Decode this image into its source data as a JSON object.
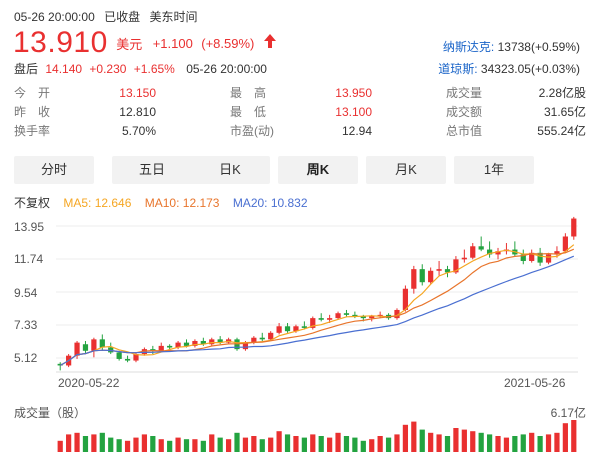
{
  "header": {
    "datetime": "05-26 20:00:00",
    "status": "已收盘",
    "timezone": "美东时间"
  },
  "price": {
    "last": "13.910",
    "currency": "美元",
    "change": "+1.100",
    "change_pct": "(+8.59%)",
    "color": "#e93030"
  },
  "after_hours": {
    "label": "盘后",
    "price": "14.140",
    "change": "+0.230",
    "change_pct": "+1.65%",
    "time": "05-26 20:00:00"
  },
  "indices": [
    {
      "name": "纳斯达克:",
      "value": "13738(+0.59%)"
    },
    {
      "name": "道琼斯:",
      "value": "34323.05(+0.03%)"
    }
  ],
  "stats": {
    "open": {
      "label": "今　开",
      "value": "13.150"
    },
    "high": {
      "label": "最　高",
      "value": "13.950"
    },
    "volume": {
      "label": "成交量",
      "value": "2.28亿股"
    },
    "prev_close": {
      "label": "昨　收",
      "value": "12.810"
    },
    "low": {
      "label": "最　低",
      "value": "13.100"
    },
    "amount": {
      "label": "成交额",
      "value": "31.65亿"
    },
    "turnover": {
      "label": "换手率",
      "value": "5.70%"
    },
    "pe": {
      "label": "市盈(动)",
      "value": "12.94"
    },
    "market_cap": {
      "label": "总市值",
      "value": "555.24亿"
    }
  },
  "tabs": [
    "分时",
    "五日",
    "日K",
    "周K",
    "月K",
    "1年"
  ],
  "active_tab": "周K",
  "adjust": "不复权",
  "ma": {
    "ma5": {
      "label": "MA5: 12.646",
      "color": "#f5a623"
    },
    "ma10": {
      "label": "MA10: 12.173",
      "color": "#e8752c"
    },
    "ma20": {
      "label": "MA20: 10.832",
      "color": "#4a6fd1"
    }
  },
  "chart_data": {
    "type": "candlestick",
    "y_ticks": [
      "13.95",
      "11.74",
      "9.54",
      "7.33",
      "5.12"
    ],
    "ylim": [
      4.5,
      14.3
    ],
    "x_start": "2020-05-22",
    "x_end": "2021-05-26",
    "volume_title": "成交量（股）",
    "volume_max": "6.17亿",
    "candles": [
      [
        5.0,
        5.1,
        4.6,
        4.9
      ],
      [
        4.9,
        5.6,
        4.8,
        5.5
      ],
      [
        5.5,
        6.4,
        5.3,
        6.3
      ],
      [
        6.2,
        6.4,
        5.6,
        5.8
      ],
      [
        5.8,
        6.6,
        5.4,
        6.5
      ],
      [
        6.5,
        6.8,
        5.8,
        6.0
      ],
      [
        6.0,
        6.3,
        5.6,
        5.7
      ],
      [
        5.7,
        5.8,
        5.2,
        5.3
      ],
      [
        5.3,
        5.5,
        5.1,
        5.2
      ],
      [
        5.2,
        5.7,
        5.1,
        5.6
      ],
      [
        5.6,
        6.0,
        5.5,
        5.9
      ],
      [
        5.9,
        6.1,
        5.6,
        5.8
      ],
      [
        5.8,
        6.3,
        5.7,
        6.1
      ],
      [
        6.1,
        6.2,
        5.9,
        6.0
      ],
      [
        6.0,
        6.4,
        5.9,
        6.3
      ],
      [
        6.3,
        6.5,
        6.0,
        6.1
      ],
      [
        6.1,
        6.5,
        6.0,
        6.4
      ],
      [
        6.4,
        6.6,
        6.1,
        6.2
      ],
      [
        6.2,
        6.6,
        6.1,
        6.5
      ],
      [
        6.5,
        6.7,
        6.2,
        6.3
      ],
      [
        6.3,
        6.6,
        6.2,
        6.5
      ],
      [
        6.5,
        6.6,
        5.8,
        5.9
      ],
      [
        5.9,
        6.4,
        5.8,
        6.3
      ],
      [
        6.3,
        6.7,
        6.2,
        6.6
      ],
      [
        6.6,
        6.9,
        6.4,
        6.5
      ],
      [
        6.5,
        7.0,
        6.4,
        6.9
      ],
      [
        6.9,
        7.5,
        6.8,
        7.3
      ],
      [
        7.3,
        7.5,
        6.9,
        7.0
      ],
      [
        7.0,
        7.4,
        6.9,
        7.3
      ],
      [
        7.3,
        7.6,
        7.1,
        7.2
      ],
      [
        7.2,
        7.9,
        7.1,
        7.8
      ],
      [
        7.8,
        8.1,
        7.6,
        7.7
      ],
      [
        7.7,
        8.0,
        7.5,
        7.8
      ],
      [
        7.8,
        8.2,
        7.7,
        8.1
      ],
      [
        8.1,
        8.3,
        7.9,
        8.0
      ],
      [
        8.0,
        8.2,
        7.8,
        7.9
      ],
      [
        7.9,
        8.0,
        7.6,
        7.8
      ],
      [
        7.8,
        8.0,
        7.6,
        7.9
      ],
      [
        7.9,
        8.2,
        7.8,
        8.0
      ],
      [
        8.0,
        8.1,
        7.7,
        7.8
      ],
      [
        7.8,
        8.4,
        7.7,
        8.3
      ],
      [
        8.3,
        9.8,
        8.2,
        9.6
      ],
      [
        9.6,
        11.0,
        9.3,
        10.8
      ],
      [
        10.8,
        11.1,
        9.8,
        10.0
      ],
      [
        10.0,
        10.9,
        9.9,
        10.7
      ],
      [
        10.7,
        11.3,
        10.4,
        10.8
      ],
      [
        10.8,
        11.0,
        10.3,
        10.6
      ],
      [
        10.6,
        11.6,
        10.5,
        11.4
      ],
      [
        11.4,
        12.0,
        11.2,
        11.5
      ],
      [
        11.5,
        12.4,
        11.4,
        12.2
      ],
      [
        12.2,
        12.8,
        11.9,
        12.0
      ],
      [
        12.0,
        12.5,
        11.5,
        11.7
      ],
      [
        11.7,
        12.1,
        11.4,
        11.9
      ],
      [
        11.9,
        12.4,
        11.7,
        12.0
      ],
      [
        12.0,
        12.5,
        11.6,
        11.7
      ],
      [
        11.7,
        12.0,
        11.1,
        11.3
      ],
      [
        11.3,
        12.0,
        11.2,
        11.8
      ],
      [
        11.8,
        12.1,
        11.0,
        11.2
      ],
      [
        11.2,
        11.8,
        11.1,
        11.7
      ],
      [
        11.7,
        12.2,
        11.5,
        11.9
      ],
      [
        11.9,
        13.0,
        11.8,
        12.8
      ],
      [
        12.8,
        14.0,
        12.6,
        13.9
      ]
    ],
    "volumes": [
      [
        0.35,
        1
      ],
      [
        0.55,
        1
      ],
      [
        0.6,
        1
      ],
      [
        0.5,
        0
      ],
      [
        0.55,
        1
      ],
      [
        0.6,
        0
      ],
      [
        0.45,
        0
      ],
      [
        0.4,
        0
      ],
      [
        0.35,
        1
      ],
      [
        0.45,
        1
      ],
      [
        0.55,
        1
      ],
      [
        0.5,
        0
      ],
      [
        0.4,
        1
      ],
      [
        0.35,
        0
      ],
      [
        0.45,
        1
      ],
      [
        0.4,
        0
      ],
      [
        0.4,
        1
      ],
      [
        0.35,
        0
      ],
      [
        0.55,
        1
      ],
      [
        0.45,
        0
      ],
      [
        0.4,
        1
      ],
      [
        0.6,
        0
      ],
      [
        0.45,
        1
      ],
      [
        0.5,
        1
      ],
      [
        0.4,
        0
      ],
      [
        0.45,
        1
      ],
      [
        0.65,
        1
      ],
      [
        0.55,
        0
      ],
      [
        0.5,
        1
      ],
      [
        0.45,
        0
      ],
      [
        0.55,
        1
      ],
      [
        0.5,
        0
      ],
      [
        0.45,
        1
      ],
      [
        0.6,
        1
      ],
      [
        0.5,
        0
      ],
      [
        0.45,
        0
      ],
      [
        0.35,
        0
      ],
      [
        0.4,
        1
      ],
      [
        0.5,
        1
      ],
      [
        0.45,
        0
      ],
      [
        0.55,
        1
      ],
      [
        0.85,
        1
      ],
      [
        0.95,
        1
      ],
      [
        0.7,
        0
      ],
      [
        0.6,
        1
      ],
      [
        0.55,
        1
      ],
      [
        0.5,
        0
      ],
      [
        0.75,
        1
      ],
      [
        0.7,
        1
      ],
      [
        0.65,
        1
      ],
      [
        0.6,
        0
      ],
      [
        0.55,
        0
      ],
      [
        0.5,
        1
      ],
      [
        0.45,
        1
      ],
      [
        0.5,
        0
      ],
      [
        0.55,
        0
      ],
      [
        0.6,
        1
      ],
      [
        0.5,
        0
      ],
      [
        0.55,
        1
      ],
      [
        0.6,
        1
      ],
      [
        0.9,
        1
      ],
      [
        1.0,
        1
      ]
    ]
  }
}
